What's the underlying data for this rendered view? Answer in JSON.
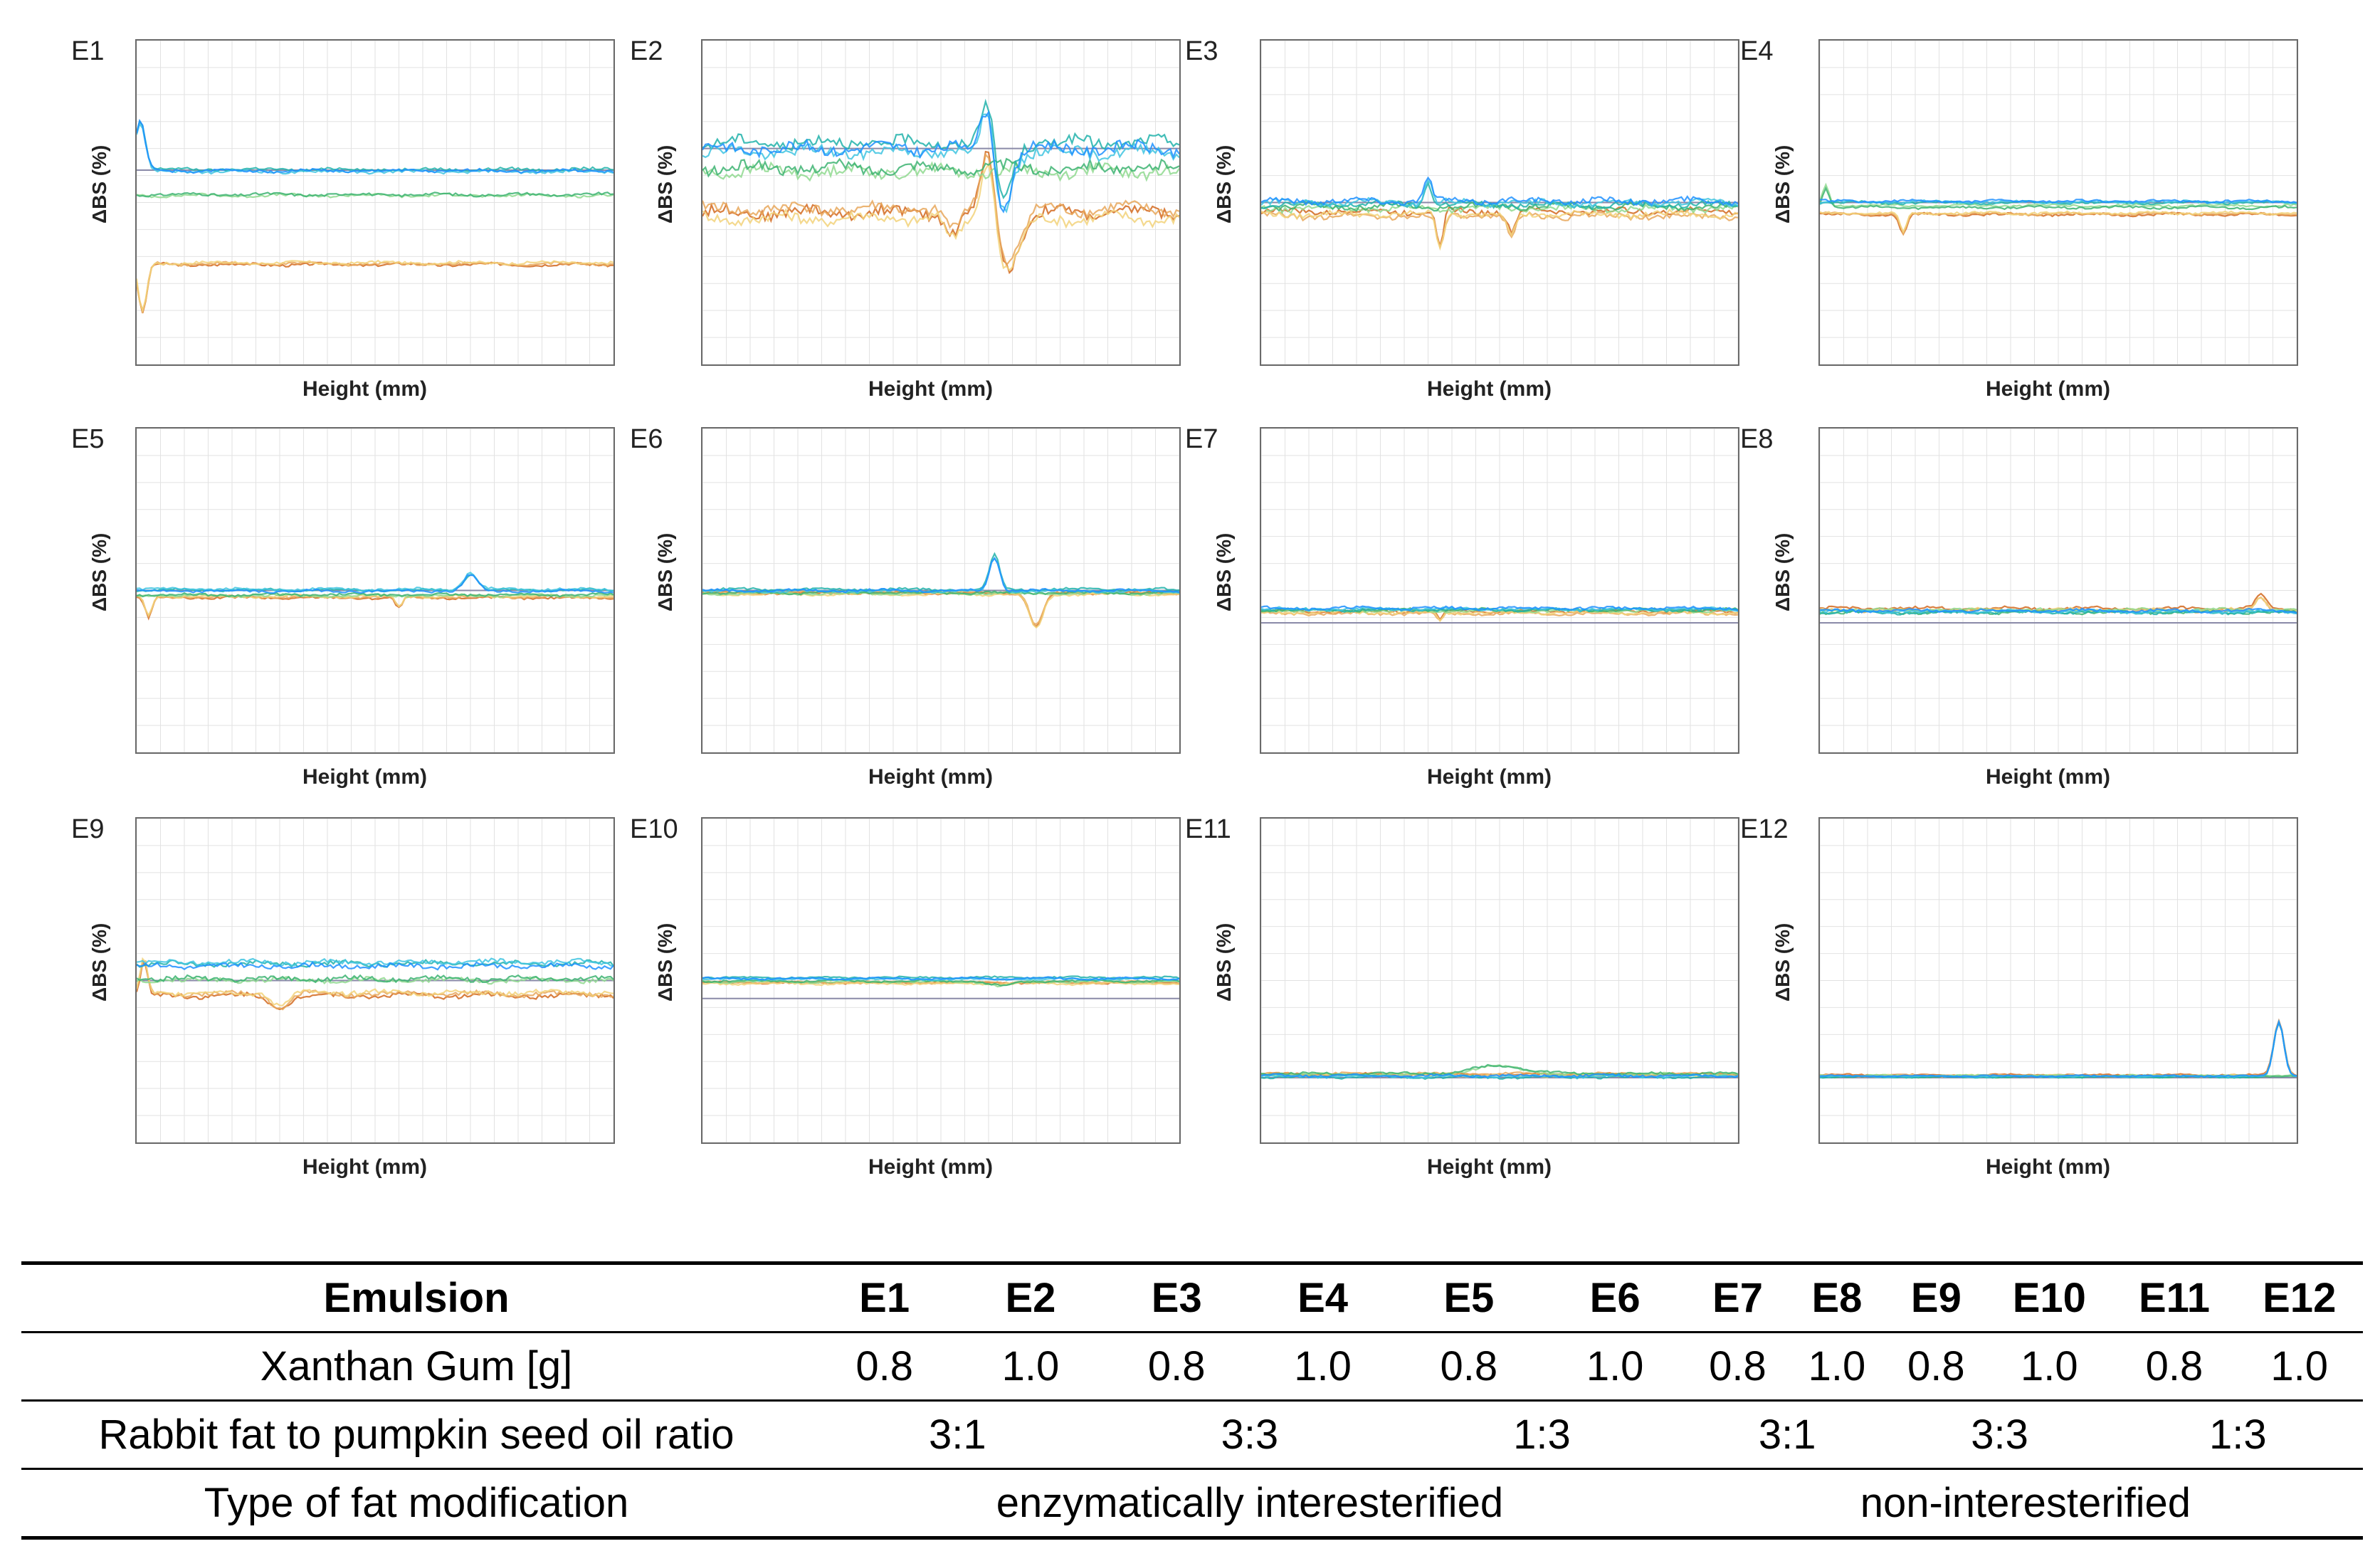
{
  "chart_data": {
    "type": "line",
    "title": "",
    "xlabel": "Height (mm)",
    "ylabel": "ΔBS (%)",
    "xlim": [
      0,
      40
    ],
    "grid": true,
    "series_colors": [
      "#d2691e",
      "#e8a75a",
      "#f2d27a",
      "#8fd98f",
      "#3cb371",
      "#20b2aa",
      "#40c4e0",
      "#1e90ff"
    ],
    "panels": [
      {
        "label": "E1",
        "ylim": [
          -12,
          8
        ],
        "baselines": [
          0,
          -1.5,
          -5.8
        ],
        "spread": 0.2,
        "features": [
          {
            "x": 0.3,
            "amp": 3,
            "w": 0.6,
            "group": 0
          },
          {
            "x": 0.5,
            "amp": -3,
            "w": 0.5,
            "group": 2
          }
        ]
      },
      {
        "label": "E2",
        "ylim": [
          -10,
          5
        ],
        "baselines": [
          0,
          -1,
          -3
        ],
        "spread": 0.6,
        "features": [
          {
            "x": 24,
            "amp": 3,
            "w": 0.8,
            "group": 0
          },
          {
            "x": 25,
            "amp": -3,
            "w": 1.2,
            "group": 0
          },
          {
            "x": 24,
            "amp": 3.5,
            "w": 0.8,
            "group": 2
          },
          {
            "x": 25.5,
            "amp": -2.5,
            "w": 1.5,
            "group": 2
          },
          {
            "x": 21,
            "amp": -1,
            "w": 0.8,
            "group": 2
          }
        ]
      },
      {
        "label": "E3",
        "ylim": [
          -12,
          12
        ],
        "baselines": [
          0,
          -0.5,
          -0.8
        ],
        "spread": 0.5,
        "features": [
          {
            "x": 14,
            "amp": 1.8,
            "w": 0.4,
            "group": 0
          },
          {
            "x": 15,
            "amp": -2.5,
            "w": 0.4,
            "group": 2
          },
          {
            "x": 21,
            "amp": -1.5,
            "w": 0.5,
            "group": 2
          }
        ]
      },
      {
        "label": "E4",
        "ylim": [
          -12,
          12
        ],
        "baselines": [
          0,
          -0.3,
          -0.8
        ],
        "spread": 0.2,
        "features": [
          {
            "x": 0.5,
            "amp": 1.5,
            "w": 0.4,
            "group": 1
          },
          {
            "x": 7,
            "amp": -1.5,
            "w": 0.4,
            "group": 2
          }
        ]
      },
      {
        "label": "E5",
        "ylim": [
          -12,
          12
        ],
        "baselines": [
          0,
          -0.3,
          -0.5
        ],
        "spread": 0.2,
        "features": [
          {
            "x": 1,
            "amp": -1.5,
            "w": 0.4,
            "group": 2
          },
          {
            "x": 28,
            "amp": 1.2,
            "w": 0.8,
            "group": 0
          },
          {
            "x": 22,
            "amp": -0.8,
            "w": 0.4,
            "group": 2
          }
        ]
      },
      {
        "label": "E6",
        "ylim": [
          -12,
          12
        ],
        "baselines": [
          0,
          -0.2,
          -0.2
        ],
        "spread": 0.2,
        "features": [
          {
            "x": 24.5,
            "amp": 2.5,
            "w": 0.6,
            "group": 0
          },
          {
            "x": 28,
            "amp": -2.5,
            "w": 0.8,
            "group": 2
          }
        ]
      },
      {
        "label": "E7",
        "ylim": [
          -12,
          18
        ],
        "baselines": [
          1.3,
          1.1,
          1.0
        ],
        "spread": 0.3,
        "features": [
          {
            "x": 15,
            "amp": -0.8,
            "w": 0.3,
            "group": 2
          }
        ]
      },
      {
        "label": "E8",
        "ylim": [
          -12,
          18
        ],
        "baselines": [
          1.0,
          1.1,
          1.2
        ],
        "spread": 0.3,
        "features": [
          {
            "x": 37,
            "amp": 1.2,
            "w": 0.6,
            "group": 2
          }
        ]
      },
      {
        "label": "E9",
        "ylim": [
          -12,
          12
        ],
        "baselines": [
          1.2,
          0.2,
          -1.0
        ],
        "spread": 0.4,
        "features": [
          {
            "x": 0.6,
            "amp": 2.5,
            "w": 0.4,
            "group": 2
          },
          {
            "x": 12,
            "amp": -1,
            "w": 1.0,
            "group": 2
          }
        ]
      },
      {
        "label": "E10",
        "ylim": [
          -20,
          25
        ],
        "baselines": [
          2.8,
          2.4,
          2.2
        ],
        "spread": 0.3,
        "features": [
          {
            "x": 25,
            "amp": -0.6,
            "w": 1.5,
            "group": 1
          }
        ]
      },
      {
        "label": "E11",
        "ylim": [
          -12,
          48
        ],
        "baselines": [
          0.3,
          0.6,
          0.5
        ],
        "spread": 0.5,
        "features": [
          {
            "x": 20,
            "amp": 1.5,
            "w": 3,
            "group": 1
          }
        ]
      },
      {
        "label": "E12",
        "ylim": [
          -12,
          48
        ],
        "baselines": [
          0.2,
          0.3,
          0.4
        ],
        "spread": 0.3,
        "features": [
          {
            "x": 38.5,
            "amp": 10,
            "w": 0.6,
            "group": 0
          },
          {
            "x": 38.5,
            "amp": 10,
            "w": 0.6,
            "group": 2
          }
        ]
      }
    ]
  },
  "table": {
    "header_label": "Emulsion",
    "emulsions": [
      "E1",
      "E2",
      "E3",
      "E4",
      "E5",
      "E6",
      "E7",
      "E8",
      "E9",
      "E10",
      "E11",
      "E12"
    ],
    "xanthan_label": "Xanthan Gum [g]",
    "xanthan_values": [
      "0.8",
      "1.0",
      "0.8",
      "1.0",
      "0.8",
      "1.0",
      "0.8",
      "1.0",
      "0.8",
      "1.0",
      "0.8",
      "1.0"
    ],
    "ratio_label": "Rabbit fat to pumpkin seed oil ratio",
    "ratio_values": [
      "3:1",
      "3:3",
      "1:3",
      "3:1",
      "3:3",
      "1:3"
    ],
    "modification_label": "Type of fat modification",
    "modification_values": [
      "enzymatically interesterified",
      "non-interesterified"
    ]
  }
}
